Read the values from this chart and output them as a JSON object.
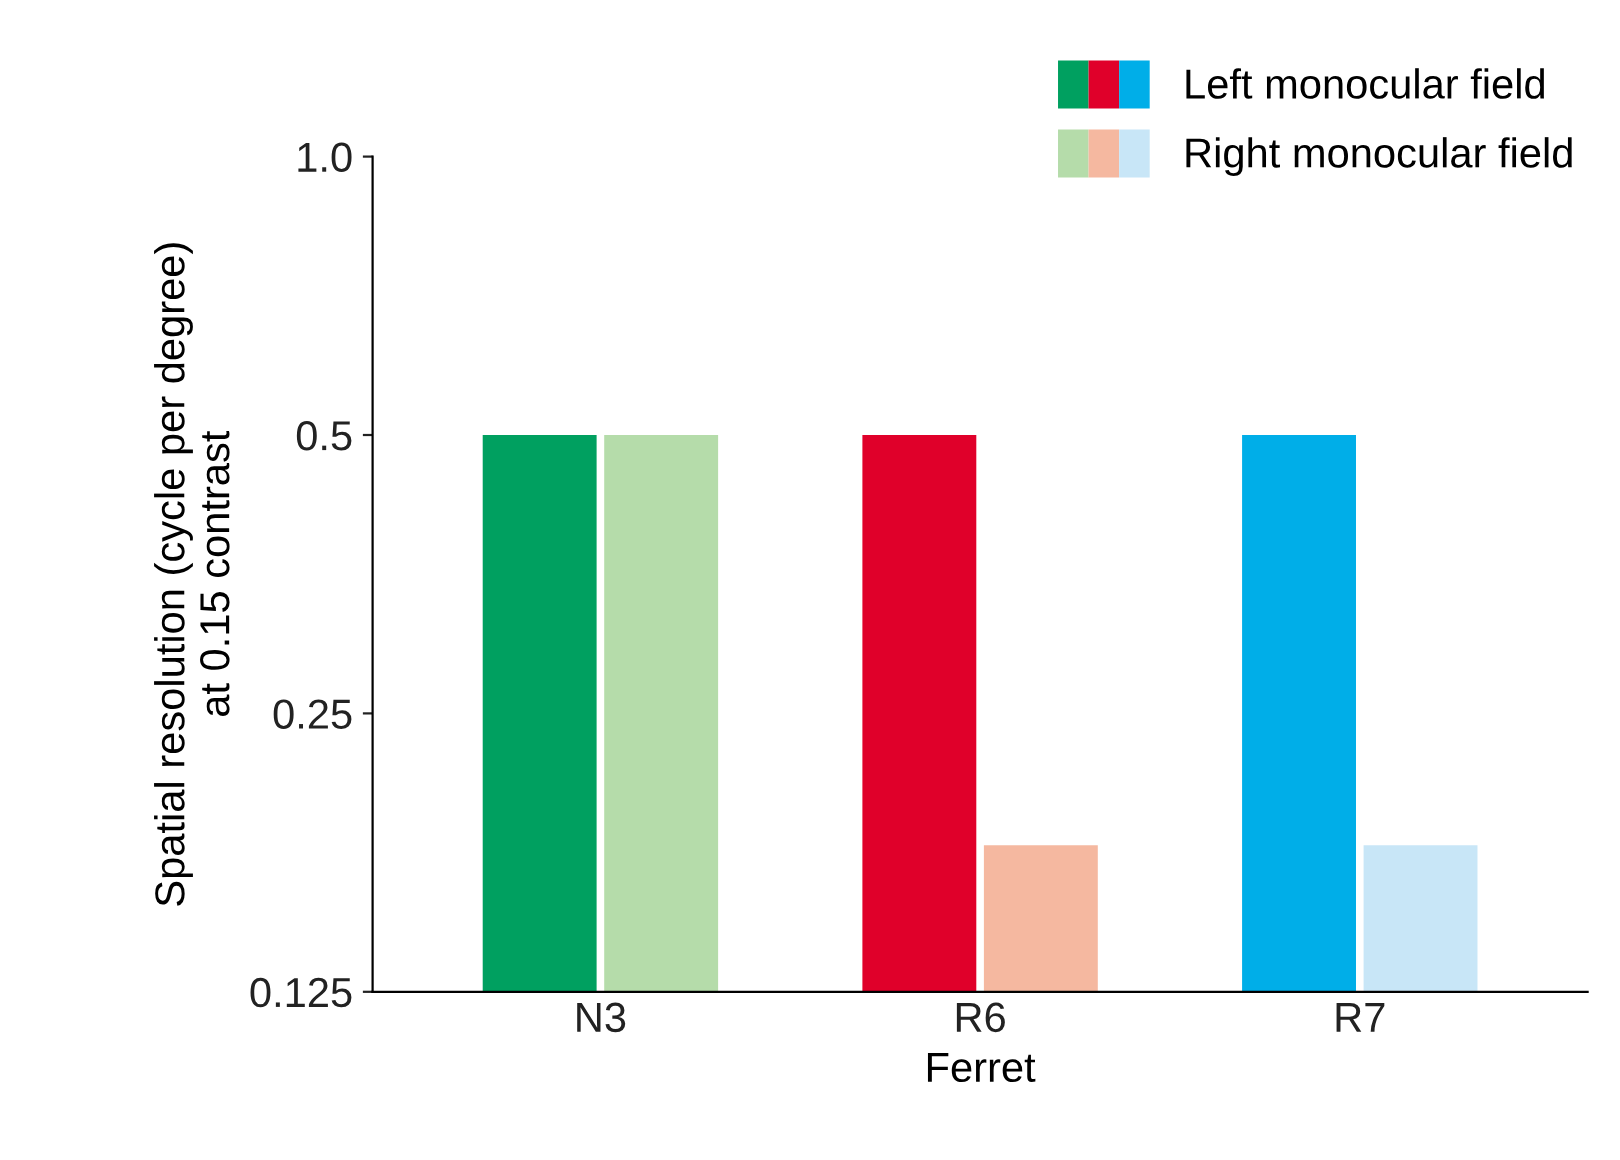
{
  "chart_data": {
    "type": "bar",
    "xlabel": "Ferret",
    "ylabel": "Spatial resolution (cycle per degree)\nat 0.15 contrast",
    "categories": [
      "N3",
      "R6",
      "R7"
    ],
    "series": [
      {
        "name": "Left monocular field",
        "colors": [
          "#00a060",
          "#e0002a",
          "#00aee8"
        ],
        "values": [
          0.5,
          0.5,
          0.5
        ]
      },
      {
        "name": "Right monocular field",
        "colors": [
          "#b5dcaa",
          "#f5b8a0",
          "#c8e6f7"
        ],
        "values": [
          0.5,
          0.18,
          0.18
        ]
      }
    ],
    "log": "y",
    "ylim": [
      0.125,
      1.0
    ],
    "yticks": [
      0.125,
      0.25,
      0.5,
      {
        "value": 1.0,
        "label": "1.0"
      }
    ],
    "grid": false,
    "legend": "top right"
  }
}
